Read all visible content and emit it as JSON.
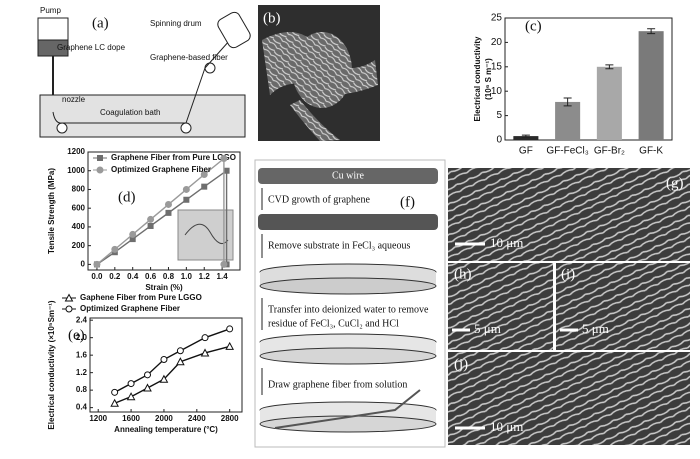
{
  "panels": {
    "a": {
      "label": "(a)",
      "pump": "Pump",
      "dope": "Graphene LC dope",
      "drum": "Spinning drum",
      "fiber": "Graphene-based fiber",
      "nozzle": "nozzle",
      "bath": "Coagulation bath"
    },
    "b": {
      "label": "(b)"
    },
    "f": {
      "label": "(f)",
      "wire": "Cu wire",
      "step1": "CVD growth of graphene",
      "step2": "Remove substrate in FeCl₃ aqueous",
      "step3a": "Transfer into deionized water to remove",
      "step3b": "residue of FeCl₃, CuCl₂ and HCl",
      "step4": "Draw graphene fiber  from solution"
    },
    "g": {
      "label": "(g)",
      "scale": "10 μm"
    },
    "h": {
      "label": "(h)",
      "scale": "5 μm"
    },
    "i": {
      "label": "(i)",
      "scale": "5 μm"
    },
    "j": {
      "label": "(j)",
      "scale": "10 μm"
    }
  },
  "chart_data": [
    {
      "type": "bar",
      "panel_label": "(c)",
      "ylabel": [
        "Electrical conductivity",
        "(10⁶ S m⁻¹)"
      ],
      "categories": [
        "GF",
        "GF-FeCl₃",
        "GF-Br₂",
        "GF-K"
      ],
      "values": [
        0.8,
        7.8,
        15,
        22.3
      ],
      "errors": [
        0.2,
        0.8,
        0.4,
        0.5
      ],
      "colors": [
        "#2a2a2a",
        "#8c8c8c",
        "#a8a8a8",
        "#7a7a7a"
      ],
      "ylim": [
        0,
        25
      ],
      "yticks": [
        0,
        5,
        10,
        15,
        20,
        25
      ]
    },
    {
      "type": "line",
      "panel_label": "(d)",
      "xlabel": "Strain (%)",
      "ylabel": "Tensile Strength (MPa)",
      "legend": "top-left",
      "series": [
        {
          "name": "Graphene Fiber from Pure LGGO",
          "color": "#6e6e6e",
          "marker": "square",
          "x": [
            0,
            0.2,
            0.4,
            0.6,
            0.8,
            1.0,
            1.2,
            1.45,
            1.45
          ],
          "values": [
            0,
            130,
            270,
            410,
            550,
            690,
            830,
            1000,
            0
          ]
        },
        {
          "name": "Optimized Graphene Fiber",
          "color": "#9a9a9a",
          "marker": "circle",
          "x": [
            0,
            0.2,
            0.4,
            0.6,
            0.8,
            1.0,
            1.2,
            1.42,
            1.42
          ],
          "values": [
            0,
            160,
            320,
            480,
            640,
            800,
            960,
            1130,
            0
          ]
        }
      ],
      "xlim": [
        -0.1,
        1.6
      ],
      "xticks": [
        {
          "value": 0,
          "label": "0.0"
        },
        0.2,
        0.4,
        0.6,
        0.8,
        {
          "value": 1,
          "label": "1.0"
        },
        1.2,
        1.4
      ],
      "ylim": [
        -60,
        1200
      ],
      "yticks": [
        0,
        200,
        400,
        600,
        800,
        1000,
        1200
      ]
    },
    {
      "type": "line",
      "panel_label": "(e)",
      "xlabel": "Annealing temperature (°C)",
      "ylabel": "Electrical conductivity (×10⁵Sm⁻¹)",
      "legend": "top-left",
      "series": [
        {
          "name": "Gaphene Fiber from Pure LGGO",
          "color": "#111111",
          "marker": "triangle",
          "x": [
            1400,
            1600,
            1800,
            2000,
            2200,
            2500,
            2800
          ],
          "values": [
            0.5,
            0.65,
            0.85,
            1.05,
            1.45,
            1.65,
            1.8
          ]
        },
        {
          "name": "Optimized Graphene Fiber",
          "color": "#111111",
          "marker": "circle",
          "x": [
            1400,
            1600,
            1800,
            2000,
            2200,
            2500,
            2800
          ],
          "values": [
            0.75,
            0.95,
            1.15,
            1.5,
            1.7,
            2.0,
            2.2
          ]
        }
      ],
      "xlim": [
        1100,
        2950
      ],
      "xticks": [
        1200,
        1600,
        2000,
        2400,
        2800
      ],
      "ylim": [
        0.3,
        2.45
      ],
      "yticks": [
        0.4,
        0.8,
        1.2,
        1.6,
        {
          "value": 2,
          "label": "2.0"
        },
        2.4
      ]
    }
  ]
}
